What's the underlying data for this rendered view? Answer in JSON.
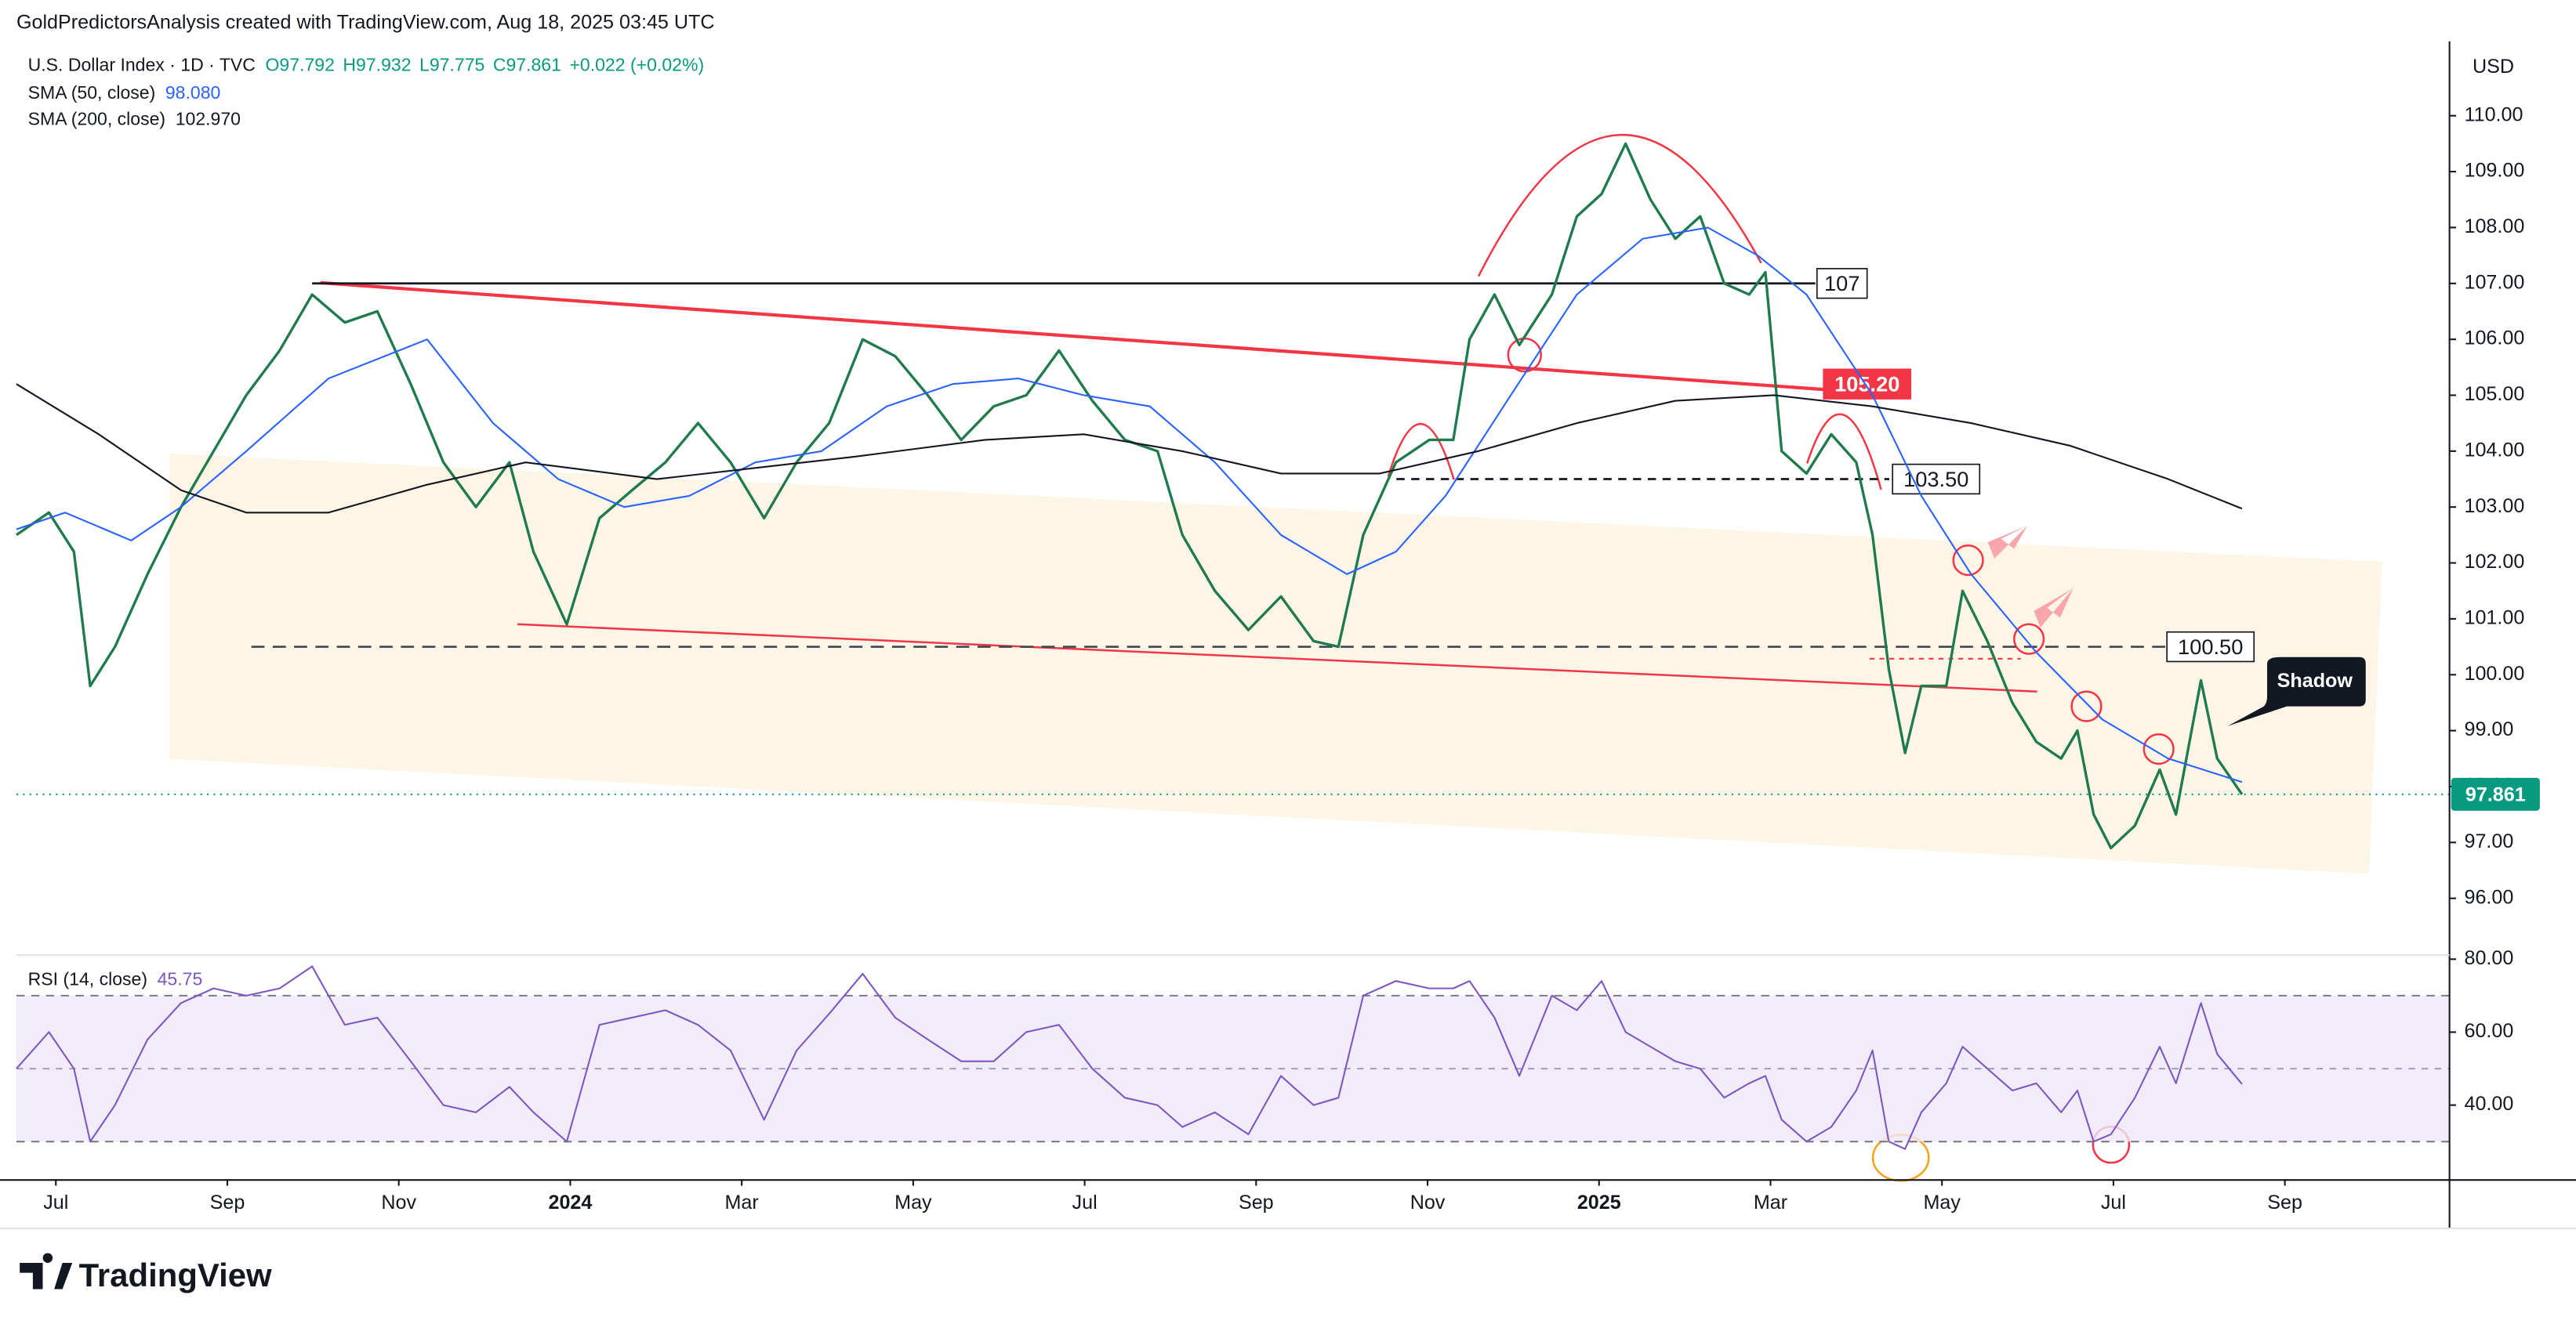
{
  "header": {
    "credit": "GoldPredictorsAnalysis created with TradingView.com, Aug 18, 2025 03:45 UTC",
    "currency": "USD",
    "legend": [
      "O97.792",
      "H97.932",
      "L97.775",
      "C97.861",
      "+0.022 (+0.02%)"
    ],
    "logo": "TradingView"
  },
  "chart_data": [
    {
      "type": "line",
      "x": [
        -0.46,
        -0.08,
        0.21,
        0.4,
        0.69,
        1.07,
        1.46,
        1.84,
        2.22,
        2.61,
        2.99,
        3.37,
        3.75,
        4.14,
        4.52,
        4.9,
        5.29,
        5.57,
        5.96,
        6.34,
        6.72,
        7.11,
        7.49,
        7.87,
        8.26,
        8.64,
        9.02,
        9.41,
        9.79,
        10.17,
        10.56,
        10.94,
        11.32,
        11.7,
        12.09,
        12.47,
        12.85,
        13.14,
        13.52,
        13.91,
        14.29,
        14.67,
        14.96,
        15.25,
        15.63,
        16.02,
        16.3,
        16.49,
        16.78,
        17.07,
        17.45,
        17.74,
        18.03,
        18.31,
        18.6,
        18.89,
        19.18,
        19.46,
        19.75,
        19.94,
        20.13,
        20.42,
        20.71,
        21.0,
        21.19,
        21.38,
        21.57,
        21.76,
        22.05,
        22.24,
        22.53,
        22.82,
        23.1,
        23.39,
        23.58,
        23.77,
        23.97,
        24.25,
        24.54,
        24.73,
        25.02,
        25.21,
        25.5
      ],
      "series": [
        {
          "name": "U.S. Dollar Index · 1D · TVC",
          "color": "#1f7a4d",
          "last_value_label": "97.861",
          "last_color": "#089981",
          "values": [
            102.5,
            102.9,
            102.2,
            99.8,
            100.5,
            101.8,
            103.0,
            104.0,
            105.0,
            105.8,
            106.8,
            106.3,
            106.5,
            105.2,
            103.8,
            103.0,
            103.8,
            102.2,
            100.9,
            102.8,
            103.3,
            103.8,
            104.5,
            103.8,
            102.8,
            103.8,
            104.5,
            106.0,
            105.7,
            105.0,
            104.2,
            104.8,
            105.0,
            105.8,
            104.9,
            104.2,
            104.0,
            102.5,
            101.5,
            100.8,
            101.4,
            100.6,
            100.5,
            102.5,
            103.8,
            104.2,
            104.2,
            106.0,
            106.8,
            105.9,
            106.8,
            108.2,
            108.6,
            109.5,
            108.5,
            107.8,
            108.2,
            107.0,
            106.8,
            107.2,
            104.0,
            103.6,
            104.3,
            103.8,
            102.5,
            100.1,
            98.6,
            99.8,
            99.8,
            101.5,
            100.6,
            99.5,
            98.8,
            98.5,
            99.0,
            97.5,
            96.9,
            97.3,
            98.3,
            97.5,
            99.9,
            98.5,
            97.861
          ]
        },
        {
          "name": "SMA (50, close)",
          "color": "#2962ff",
          "last_value_label": "98.080",
          "x": [
            -0.46,
            0.11,
            0.88,
            1.46,
            2.22,
            3.18,
            4.33,
            5.1,
            5.86,
            6.63,
            7.39,
            8.16,
            8.93,
            9.69,
            10.46,
            11.23,
            11.99,
            12.76,
            13.52,
            14.29,
            15.06,
            15.63,
            16.21,
            16.97,
            17.74,
            18.51,
            19.27,
            19.85,
            20.42,
            21.19,
            21.76,
            22.34,
            23.1,
            23.87,
            24.64,
            25.5
          ],
          "values": [
            102.6,
            102.9,
            102.4,
            103.0,
            104.0,
            105.3,
            106.0,
            104.5,
            103.5,
            103.0,
            103.2,
            103.8,
            104.0,
            104.8,
            105.2,
            105.3,
            105.0,
            104.8,
            103.8,
            102.5,
            101.8,
            102.2,
            103.2,
            105.0,
            106.8,
            107.8,
            108.0,
            107.5,
            106.8,
            105.0,
            103.2,
            101.8,
            100.4,
            99.2,
            98.5,
            98.08
          ]
        },
        {
          "name": "SMA (200, close)",
          "color": "#131722",
          "last_value_label": "102.970",
          "x": [
            -0.46,
            0.5,
            1.46,
            2.22,
            3.18,
            4.33,
            5.48,
            7.01,
            8.16,
            9.31,
            10.84,
            11.99,
            13.14,
            14.29,
            15.44,
            16.59,
            17.74,
            18.89,
            20.04,
            21.19,
            22.34,
            23.49,
            24.64,
            25.5
          ],
          "values": [
            105.2,
            104.3,
            103.3,
            102.9,
            102.9,
            103.4,
            103.8,
            103.5,
            103.7,
            103.9,
            104.2,
            104.3,
            104.0,
            103.6,
            103.6,
            104.0,
            104.5,
            104.9,
            105.0,
            104.8,
            104.5,
            104.1,
            103.5,
            102.97
          ]
        }
      ],
      "levels": [
        {
          "value": 107,
          "label": "107"
        },
        {
          "value": 105.2,
          "label": "105.20"
        },
        {
          "value": 103.5,
          "label": "103.50"
        },
        {
          "value": 100.5,
          "label": "100.50"
        }
      ],
      "annotations": [
        "Shadow"
      ],
      "xlim": [
        -0.46,
        27.92
      ],
      "xticks": [
        {
          "value": 0,
          "label": "Jul"
        },
        {
          "value": 2,
          "label": "Sep"
        },
        {
          "value": 4,
          "label": "Nov"
        },
        {
          "value": 6,
          "label": "2024"
        },
        {
          "value": 8,
          "label": "Mar"
        },
        {
          "value": 10,
          "label": "May"
        },
        {
          "value": 12,
          "label": "Jul"
        },
        {
          "value": 14,
          "label": "Sep"
        },
        {
          "value": 16,
          "label": "Nov"
        },
        {
          "value": 18,
          "label": "2025"
        },
        {
          "value": 20,
          "label": "Mar"
        },
        {
          "value": 22,
          "label": "May"
        },
        {
          "value": 24,
          "label": "Jul"
        },
        {
          "value": 26,
          "label": "Sep"
        }
      ],
      "ylim": [
        95,
        111.3
      ],
      "yticks": [
        {
          "value": 96,
          "label": "96.00"
        },
        {
          "value": 97,
          "label": "97.00"
        },
        {
          "value": 98,
          "label": "98.00"
        },
        {
          "value": 99,
          "label": "99.00"
        },
        {
          "value": 100,
          "label": "100.00"
        },
        {
          "value": 101,
          "label": "101.00"
        },
        {
          "value": 102,
          "label": "102.00"
        },
        {
          "value": 103,
          "label": "103.00"
        },
        {
          "value": 104,
          "label": "104.00"
        },
        {
          "value": 105,
          "label": "105.00"
        },
        {
          "value": 106,
          "label": "106.00"
        },
        {
          "value": 107,
          "label": "107.00"
        },
        {
          "value": 108,
          "label": "108.00"
        },
        {
          "value": 109,
          "label": "109.00"
        },
        {
          "value": 110,
          "label": "110.00"
        }
      ]
    },
    {
      "type": "line",
      "series": [
        {
          "name": "RSI (14, close)",
          "color": "#7e57c2",
          "last_value": 45.75,
          "values": [
            50,
            60,
            50,
            30,
            40,
            58,
            68,
            72,
            70,
            72,
            78,
            62,
            64,
            52,
            40,
            38,
            45,
            38,
            30,
            62,
            64,
            66,
            62,
            55,
            36,
            55,
            65,
            76,
            64,
            58,
            52,
            52,
            60,
            62,
            50,
            42,
            40,
            34,
            38,
            32,
            48,
            40,
            42,
            70,
            74,
            72,
            72,
            74,
            64,
            48,
            70,
            66,
            74,
            60,
            56,
            52,
            50,
            42,
            46,
            48,
            36,
            30,
            34,
            44,
            55,
            30,
            28,
            38,
            46,
            56,
            50,
            44,
            46,
            38,
            44,
            30,
            32,
            42,
            56,
            46,
            68,
            54,
            45.75
          ]
        }
      ],
      "bands": [
        30,
        70
      ],
      "midline": 50,
      "ylim": [
        19.7,
        80.9
      ],
      "yticks": [
        {
          "value": 40,
          "label": "40.00"
        },
        {
          "value": 60,
          "label": "60.00"
        },
        {
          "value": 80,
          "label": "80.00"
        }
      ]
    }
  ]
}
